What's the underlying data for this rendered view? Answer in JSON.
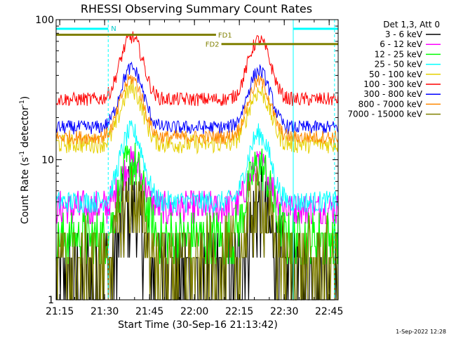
{
  "chart_data": {
    "type": "line",
    "title": "RHESSI Observing Summary Count Rates",
    "xlabel": "Start Time (30-Sep-16 21:13:42)",
    "ylabel_main": "Count Rate (s",
    "ylabel_sup1": "-1",
    "ylabel_mid": " detector",
    "ylabel_sup2": "-1",
    "ylabel_end": ")",
    "y_scale": "log",
    "ylim": [
      1,
      100
    ],
    "xlim_minutes": [
      21.23,
      22.8
    ],
    "x_ticks": [
      {
        "label": "21:15",
        "t": 21.25
      },
      {
        "label": "21:30",
        "t": 21.5
      },
      {
        "label": "21:45",
        "t": 21.75
      },
      {
        "label": "22:00",
        "t": 22.0
      },
      {
        "label": "22:15",
        "t": 22.25
      },
      {
        "label": "22:30",
        "t": 22.5
      },
      {
        "label": "22:45",
        "t": 22.75
      }
    ],
    "y_ticks": [
      {
        "label": "1",
        "v": 1
      },
      {
        "label": "10",
        "v": 10
      },
      {
        "label": "100",
        "v": 100
      }
    ],
    "legend_header": "Det 1,3, Att 0",
    "legend_position": "right",
    "series": [
      {
        "name": "3 - 6 keV",
        "color": "#000000",
        "base": 1.5,
        "peak": 4.5,
        "noise": 0.35,
        "step": 1.0
      },
      {
        "name": "6 - 12 keV",
        "color": "#ff00ff",
        "base": 4.5,
        "peak": 9.5,
        "noise": 0.12,
        "step": 0.5
      },
      {
        "name": "12 - 25 keV",
        "color": "#00ff00",
        "base": 2.8,
        "peak": 9.5,
        "noise": 0.18,
        "step": 0.6
      },
      {
        "name": "25 - 50 keV",
        "color": "#00ffff",
        "base": 5.0,
        "peak": 16.0,
        "noise": 0.08,
        "step": 0
      },
      {
        "name": "50 - 100 keV",
        "color": "#e6d000",
        "base": 13.0,
        "peak": 32.0,
        "noise": 0.07,
        "step": 0
      },
      {
        "name": "100 - 300 keV",
        "color": "#ff0000",
        "base": 27.0,
        "peak": 75.0,
        "noise": 0.05,
        "step": 0
      },
      {
        "name": "300 - 800 keV",
        "color": "#0000ff",
        "base": 17.0,
        "peak": 45.0,
        "noise": 0.05,
        "step": 0
      },
      {
        "name": "800 - 7000 keV",
        "color": "#ff8800",
        "base": 14.5,
        "peak": 38.0,
        "noise": 0.05,
        "step": 0
      },
      {
        "name": "7000 - 15000 keV",
        "color": "#808000",
        "base": 1.8,
        "peak": 5.0,
        "noise": 0.3,
        "step": 1.0
      }
    ],
    "peaks_t": [
      21.65,
      22.36
    ],
    "annotations": {
      "night_label": "N",
      "fd1_label": "FD1",
      "fd2_label": "FD2",
      "timestamp": "1-Sep-2022 12:28"
    },
    "night_bars": [
      {
        "t0": 21.23,
        "t1": 21.52
      },
      {
        "t0": 22.55,
        "t1": 22.8
      }
    ],
    "fd1_bar": {
      "t0": 21.23,
      "t1": 22.12,
      "v": 78
    },
    "fd2_bar": {
      "t0": 22.15,
      "t1": 22.8,
      "v": 67
    },
    "vlines_cyan": [
      21.23,
      21.52,
      22.55,
      22.78
    ]
  }
}
